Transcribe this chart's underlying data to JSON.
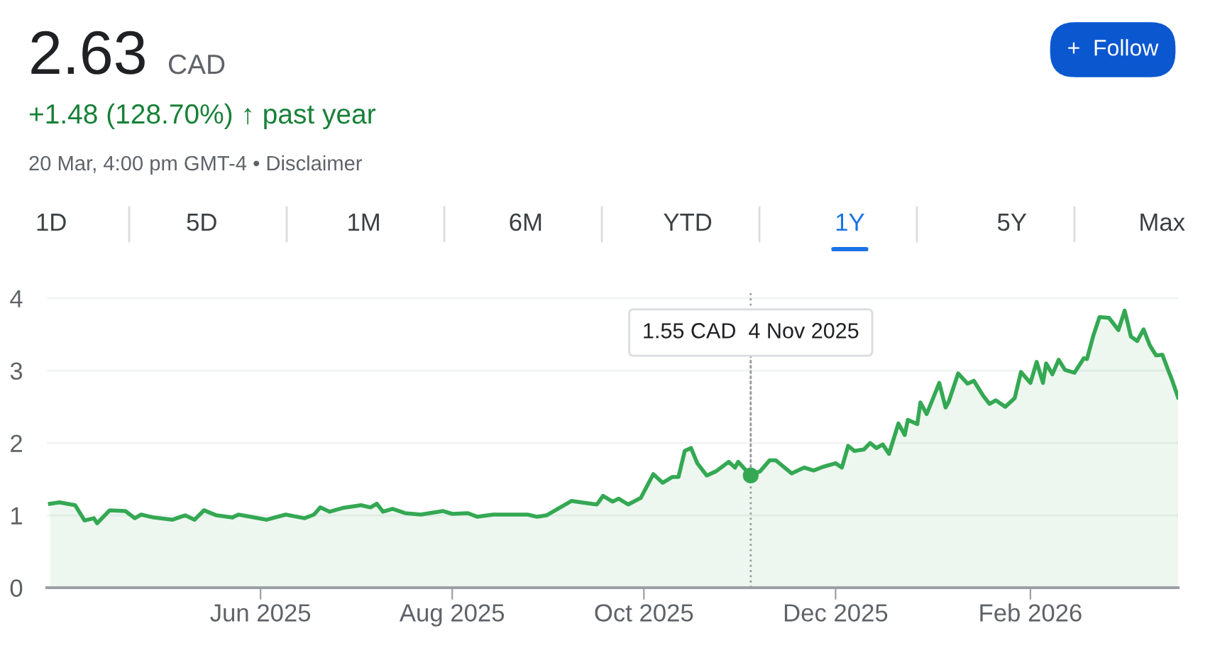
{
  "chart_data": {
    "type": "area",
    "title": "2.63",
    "subtitle": "+1.48 (128.70%) ↑ past year",
    "annotations": [
      "CAD",
      "20 Mar, 4:00 pm GMT-4 • Disclaimer",
      "+  Follow",
      "1D",
      "5D",
      "1M",
      "6M",
      "YTD",
      "1Y",
      "5Y",
      "Max",
      {
        "text": "1.55 CAD  4 Nov 2025",
        "x": "2025-11-04",
        "y": 1.55
      }
    ],
    "ref_lines": [
      {
        "axis": "x",
        "value": "2025-11-04",
        "line_style": "dotted",
        "color": "#9aa0a6"
      }
    ],
    "x": [
      "2025-03-26",
      "2025-03-29",
      "2025-04-03",
      "2025-04-06",
      "2025-04-09",
      "2025-04-10",
      "2025-04-14",
      "2025-04-19",
      "2025-04-22",
      "2025-04-24",
      "2025-04-28",
      "2025-05-04",
      "2025-05-08",
      "2025-05-11",
      "2025-05-14",
      "2025-05-18",
      "2025-05-23",
      "2025-05-25",
      "2025-06-03",
      "2025-06-09",
      "2025-06-15",
      "2025-06-18",
      "2025-06-20",
      "2025-06-23",
      "2025-06-27",
      "2025-07-03",
      "2025-07-06",
      "2025-07-08",
      "2025-07-10",
      "2025-07-13",
      "2025-07-17",
      "2025-07-22",
      "2025-07-29",
      "2025-08-01",
      "2025-08-06",
      "2025-08-09",
      "2025-08-14",
      "2025-08-25",
      "2025-08-28",
      "2025-08-31",
      "2025-09-04",
      "2025-09-08",
      "2025-09-11",
      "2025-09-16",
      "2025-09-18",
      "2025-09-21",
      "2025-09-23",
      "2025-09-26",
      "2025-09-30",
      "2025-10-04",
      "2025-10-07",
      "2025-10-10",
      "2025-10-12",
      "2025-10-14",
      "2025-10-16",
      "2025-10-18",
      "2025-10-21",
      "2025-10-24",
      "2025-10-28",
      "2025-10-30",
      "2025-10-31",
      "2025-11-04",
      "2025-11-07",
      "2025-11-10",
      "2025-11-12",
      "2025-11-17",
      "2025-11-21",
      "2025-11-24",
      "2025-11-27",
      "2025-12-01",
      "2025-12-03",
      "2025-12-05",
      "2025-12-07",
      "2025-12-10",
      "2025-12-12",
      "2025-12-14",
      "2025-12-16",
      "2025-12-18",
      "2025-12-21",
      "2025-12-23",
      "2025-12-24",
      "2025-12-27",
      "2025-12-28",
      "2025-12-30",
      "2026-01-03",
      "2026-01-05",
      "2026-01-06",
      "2026-01-09",
      "2026-01-12",
      "2026-01-14",
      "2026-01-17",
      "2026-01-19",
      "2026-01-21",
      "2026-01-24",
      "2026-01-27",
      "2026-01-29",
      "2026-02-01",
      "2026-02-03",
      "2026-02-05",
      "2026-02-06",
      "2026-02-08",
      "2026-02-10",
      "2026-02-12",
      "2026-02-15",
      "2026-02-18",
      "2026-02-19",
      "2026-02-21",
      "2026-02-23",
      "2026-02-26",
      "2026-03-01",
      "2026-03-03",
      "2026-03-05",
      "2026-03-07",
      "2026-03-09",
      "2026-03-11",
      "2026-03-13",
      "2026-03-15",
      "2026-03-17",
      "2026-03-18",
      "2026-03-20"
    ],
    "series": [
      {
        "color": "#34a853",
        "values": [
          1.16,
          1.18,
          1.14,
          0.93,
          0.96,
          0.89,
          1.07,
          1.06,
          0.96,
          1.01,
          0.97,
          0.94,
          1.0,
          0.94,
          1.07,
          1.0,
          0.97,
          1.01,
          0.94,
          1.01,
          0.96,
          1.01,
          1.11,
          1.05,
          1.1,
          1.14,
          1.11,
          1.16,
          1.05,
          1.09,
          1.03,
          1.01,
          1.06,
          1.02,
          1.03,
          0.98,
          1.01,
          1.01,
          0.98,
          1.0,
          1.1,
          1.2,
          1.18,
          1.15,
          1.27,
          1.19,
          1.23,
          1.15,
          1.24,
          1.57,
          1.45,
          1.53,
          1.53,
          1.89,
          1.93,
          1.72,
          1.55,
          1.61,
          1.74,
          1.66,
          1.74,
          1.55,
          1.61,
          1.76,
          1.76,
          1.58,
          1.66,
          1.62,
          1.67,
          1.72,
          1.66,
          1.96,
          1.89,
          1.91,
          2.0,
          1.93,
          1.98,
          1.85,
          2.27,
          2.11,
          2.32,
          2.26,
          2.56,
          2.4,
          2.83,
          2.49,
          2.57,
          2.96,
          2.82,
          2.86,
          2.65,
          2.54,
          2.59,
          2.5,
          2.62,
          2.98,
          2.83,
          3.12,
          2.83,
          3.1,
          2.95,
          3.15,
          3.01,
          2.97,
          3.17,
          3.16,
          3.48,
          3.74,
          3.73,
          3.56,
          3.83,
          3.47,
          3.41,
          3.57,
          3.35,
          3.21,
          3.22,
          2.99,
          2.88,
          2.63
        ]
      }
    ],
    "xlim": [
      "2025-03-25",
      "2026-03-20"
    ],
    "ylim": [
      0,
      4.1
    ],
    "yticks": [
      0,
      1,
      2,
      3,
      4
    ],
    "xticks": [
      {
        "value": "2025-06-01",
        "label": "Jun 2025"
      },
      {
        "value": "2025-08-01",
        "label": "Aug 2025"
      },
      {
        "value": "2025-10-01",
        "label": "Oct 2025"
      },
      {
        "value": "2025-12-01",
        "label": "Dec 2025"
      },
      {
        "value": "2026-02-01",
        "label": "Feb 2026"
      }
    ],
    "grid": "y",
    "legend": false
  }
}
